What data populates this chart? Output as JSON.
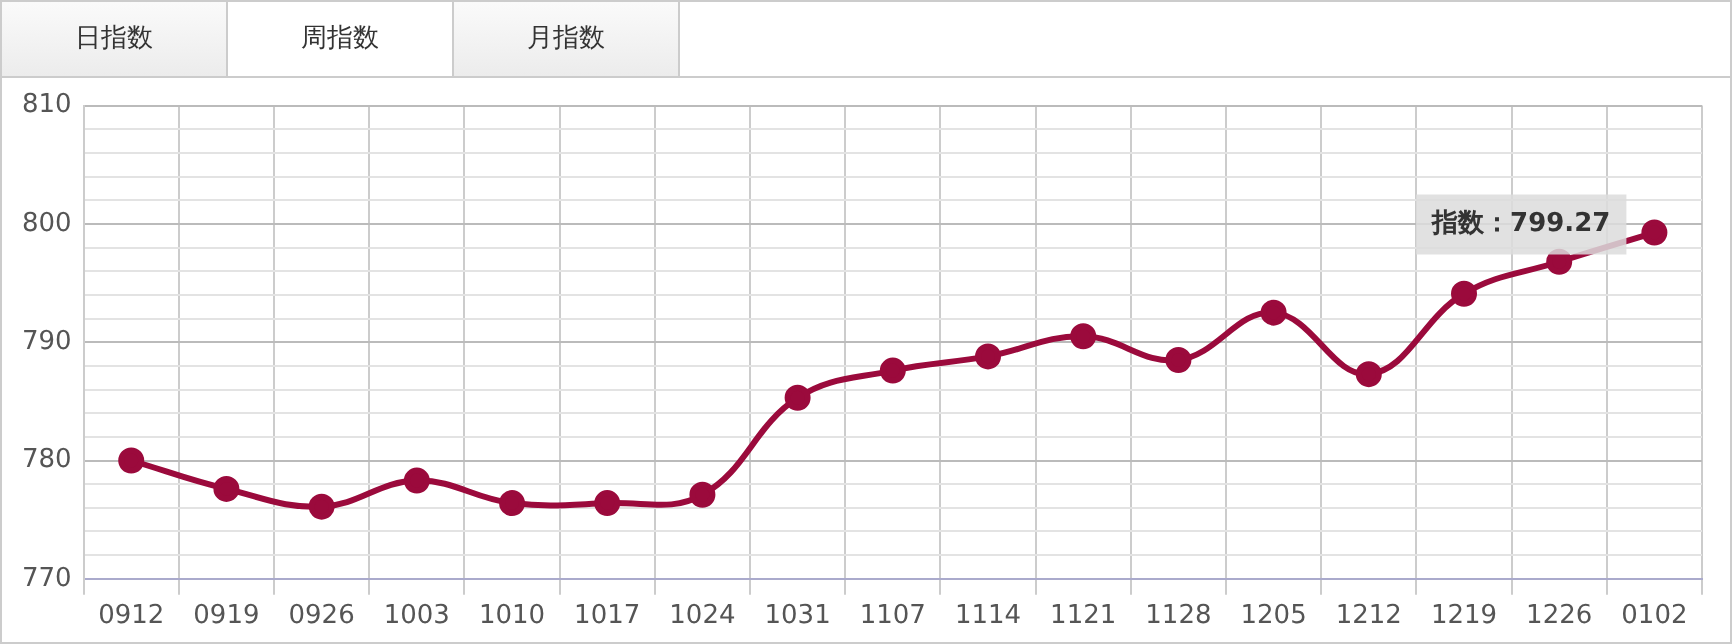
{
  "chart_data": {
    "type": "line",
    "categories": [
      "0912",
      "0919",
      "0926",
      "1003",
      "1010",
      "1017",
      "1024",
      "1031",
      "1107",
      "1114",
      "1121",
      "1128",
      "1205",
      "1212",
      "1219",
      "1226",
      "0102"
    ],
    "series": [
      {
        "color": "#9b0a3c",
        "values": [
          780.0,
          777.6,
          776.1,
          778.3,
          776.4,
          776.4,
          777.1,
          785.3,
          787.6,
          788.8,
          790.5,
          788.5,
          792.5,
          787.3,
          794.1,
          796.8,
          799.27
        ]
      }
    ],
    "ylim": [
      770,
      810
    ],
    "yticks": [
      770,
      {
        "value": 772,
        "label": null
      },
      {
        "value": 774,
        "label": null
      },
      {
        "value": 776,
        "label": null
      },
      {
        "value": 778,
        "label": null
      },
      780,
      {
        "value": 782,
        "label": null
      },
      {
        "value": 784,
        "label": null
      },
      {
        "value": 786,
        "label": null
      },
      {
        "value": 788,
        "label": null
      },
      790,
      {
        "value": 792,
        "label": null
      },
      {
        "value": 794,
        "label": null
      },
      {
        "value": 796,
        "label": null
      },
      {
        "value": 798,
        "label": null
      },
      800,
      {
        "value": 802,
        "label": null
      },
      {
        "value": 804,
        "label": null
      },
      {
        "value": 806,
        "label": null
      },
      {
        "value": 808,
        "label": null
      },
      810
    ],
    "grid": true,
    "marker": "circle",
    "line_style": "solid",
    "annotations": [
      "日指数",
      "周指数",
      "月指数",
      {
        "text": "指数：799.27",
        "x": "0102",
        "y": 799.27
      }
    ]
  }
}
